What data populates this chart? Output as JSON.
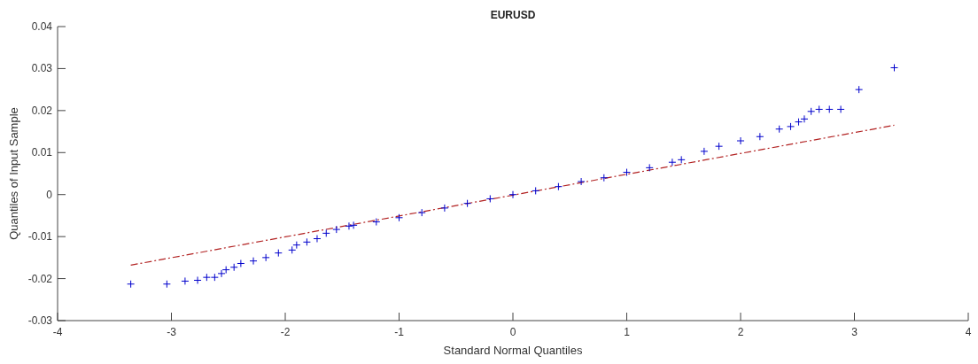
{
  "chart_data": {
    "type": "scatter",
    "title": "EURUSD",
    "xlabel": "Standard Normal Quantiles",
    "ylabel": "Quantiles of Input Sample",
    "xlim": [
      -4,
      4
    ],
    "ylim": [
      -0.03,
      0.04
    ],
    "xticks": [
      -4,
      -3,
      -2,
      -1,
      0,
      1,
      2,
      3,
      4
    ],
    "yticks": [
      -0.03,
      -0.02,
      -0.01,
      0,
      0.01,
      0.02,
      0.03,
      0.04
    ],
    "grid": false,
    "series": [
      {
        "color": "#0000cc",
        "marker": "cross",
        "x": [
          -3.357,
          -3.04,
          -2.88,
          -2.77,
          -2.69,
          -2.62,
          -2.56,
          -2.52,
          -2.45,
          -2.39,
          -2.28,
          -2.17,
          -2.06,
          -1.94,
          -1.9,
          -1.81,
          -1.72,
          -1.64,
          -1.55,
          -1.44,
          -1.4,
          -1.2,
          -1.0,
          -0.8,
          -0.6,
          -0.4,
          -0.2,
          0,
          0.2,
          0.4,
          0.6,
          0.8,
          1.0,
          1.2,
          1.4,
          1.48,
          1.68,
          1.81,
          2.0,
          2.17,
          2.34,
          2.44,
          2.51,
          2.56,
          2.62,
          2.69,
          2.78,
          2.88,
          3.04,
          3.35
        ],
        "values": [
          -0.0213,
          -0.0213,
          -0.0206,
          -0.0204,
          -0.0197,
          -0.0197,
          -0.0188,
          -0.0179,
          -0.0173,
          -0.0164,
          -0.0158,
          -0.015,
          -0.0139,
          -0.0132,
          -0.012,
          -0.0113,
          -0.0105,
          -0.0092,
          -0.0083,
          -0.0075,
          -0.0073,
          -0.0065,
          -0.0055,
          -0.0043,
          -0.0032,
          -0.0021,
          -0.001,
          0,
          0.0009,
          0.0019,
          0.0031,
          0.004,
          0.0053,
          0.0064,
          0.0077,
          0.0083,
          0.0103,
          0.0115,
          0.0128,
          0.0138,
          0.0156,
          0.0162,
          0.0173,
          0.018,
          0.0198,
          0.0203,
          0.0203,
          0.0203,
          0.025,
          0.0302
        ]
      },
      {
        "type": "line",
        "color": "#b22222",
        "line_style": "dashed",
        "marker": "none",
        "x": [
          -3.357,
          3.35
        ],
        "values": [
          -0.0168,
          0.0165
        ]
      }
    ]
  }
}
